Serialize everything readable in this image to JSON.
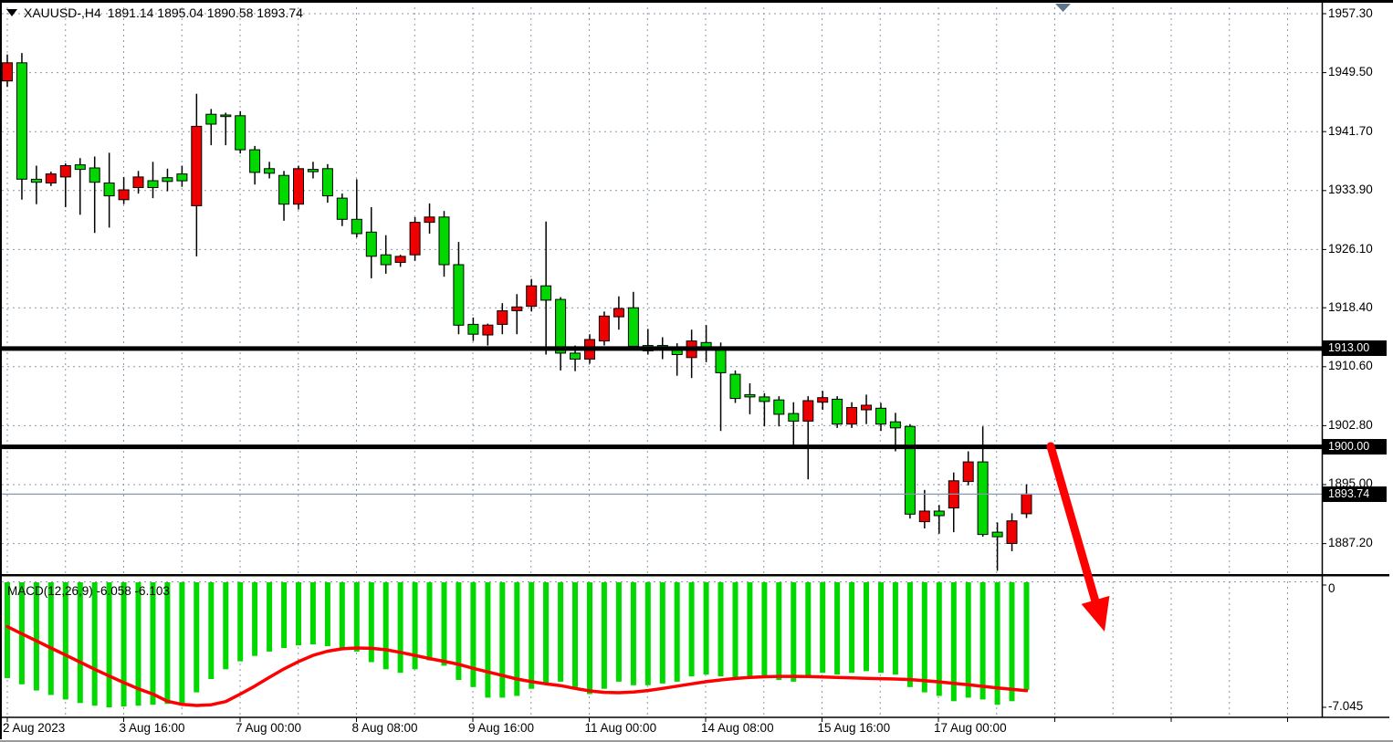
{
  "window": {
    "symbol_period": "XAUUSD-,H4",
    "ohlc_line": "1891.14 1895.04 1890.58 1893.74"
  },
  "chart_data": {
    "type": "candlestick",
    "symbol": "XAUUSD-",
    "timeframe": "H4",
    "current_bar": {
      "open": 1891.14,
      "high": 1895.04,
      "low": 1890.58,
      "close": 1893.74
    },
    "price_axis": {
      "ticks": [
        {
          "label": "1957.30",
          "value": 1957.3
        },
        {
          "label": "1949.50",
          "value": 1949.5
        },
        {
          "label": "1941.70",
          "value": 1941.7
        },
        {
          "label": "1933.90",
          "value": 1933.9
        },
        {
          "label": "1926.10",
          "value": 1926.1
        },
        {
          "label": "1918.40",
          "value": 1918.4
        },
        {
          "label": "1910.60",
          "value": 1910.6
        },
        {
          "label": "1902.80",
          "value": 1902.8
        },
        {
          "label": "1895.00",
          "value": 1895.0
        },
        {
          "label": "1887.20",
          "value": 1887.2
        }
      ]
    },
    "date_axis": {
      "labels": [
        "2 Aug 2023",
        "3 Aug 16:00",
        "7 Aug 00:00",
        "8 Aug 08:00",
        "9 Aug 16:00",
        "11 Aug 00:00",
        "14 Aug 08:00",
        "15 Aug 16:00",
        "17 Aug 00:00"
      ]
    },
    "hlines": [
      {
        "price": 1913.0,
        "label": "1913.00"
      },
      {
        "price": 1900.0,
        "label": "1900.00"
      }
    ],
    "current_price": {
      "value": 1893.74,
      "label": "1893.74"
    },
    "candles": [
      [
        1948.4,
        1951.9,
        1947.6,
        1950.8
      ],
      [
        1950.8,
        1952.1,
        1932.7,
        1935.4
      ],
      [
        1935.4,
        1937.2,
        1932.1,
        1935.0
      ],
      [
        1934.9,
        1936.4,
        1934.5,
        1936.1
      ],
      [
        1935.7,
        1937.5,
        1931.7,
        1937.2
      ],
      [
        1937.3,
        1938.2,
        1930.7,
        1936.7
      ],
      [
        1936.9,
        1938.4,
        1928.3,
        1935.0
      ],
      [
        1934.9,
        1938.9,
        1929.0,
        1933.2
      ],
      [
        1932.7,
        1935.7,
        1932.1,
        1934.0
      ],
      [
        1934.3,
        1936.5,
        1933.5,
        1935.7
      ],
      [
        1935.2,
        1937.7,
        1932.9,
        1934.3
      ],
      [
        1935.6,
        1936.8,
        1933.8,
        1935.1
      ],
      [
        1936.1,
        1937.2,
        1934.4,
        1935.2
      ],
      [
        1931.9,
        1946.7,
        1925.2,
        1942.4
      ],
      [
        1944.0,
        1944.7,
        1939.9,
        1942.7
      ],
      [
        1943.9,
        1944.2,
        1939.9,
        1943.7
      ],
      [
        1943.8,
        1944.4,
        1938.8,
        1939.3
      ],
      [
        1939.3,
        1939.8,
        1934.7,
        1936.3
      ],
      [
        1936.8,
        1937.7,
        1935.5,
        1936.2
      ],
      [
        1935.9,
        1936.5,
        1929.9,
        1932.1
      ],
      [
        1932.1,
        1937.2,
        1931.4,
        1936.8
      ],
      [
        1936.7,
        1937.7,
        1935.5,
        1936.4
      ],
      [
        1936.8,
        1937.4,
        1932.3,
        1933.2
      ],
      [
        1932.9,
        1933.5,
        1929.2,
        1930.1
      ],
      [
        1930.1,
        1935.4,
        1927.7,
        1928.2
      ],
      [
        1928.4,
        1931.7,
        1922.3,
        1925.2
      ],
      [
        1925.4,
        1928.0,
        1922.9,
        1924.1
      ],
      [
        1924.4,
        1925.4,
        1923.8,
        1925.2
      ],
      [
        1925.4,
        1930.4,
        1924.6,
        1929.7
      ],
      [
        1929.7,
        1932.2,
        1928.2,
        1930.4
      ],
      [
        1930.4,
        1931.2,
        1922.5,
        1924.1
      ],
      [
        1924.1,
        1927.1,
        1914.9,
        1916.1
      ],
      [
        1916.2,
        1917.1,
        1914.0,
        1914.9
      ],
      [
        1914.8,
        1916.3,
        1913.4,
        1916.1
      ],
      [
        1916.2,
        1919.0,
        1914.9,
        1918.0
      ],
      [
        1918.0,
        1920.2,
        1914.9,
        1918.5
      ],
      [
        1918.6,
        1922.2,
        1917.9,
        1921.3
      ],
      [
        1921.3,
        1929.8,
        1912.2,
        1919.4
      ],
      [
        1919.5,
        1919.8,
        1910.1,
        1912.4
      ],
      [
        1912.4,
        1913.4,
        1910.0,
        1911.6
      ],
      [
        1911.6,
        1914.9,
        1911.0,
        1914.2
      ],
      [
        1914.0,
        1917.9,
        1913.4,
        1917.3
      ],
      [
        1917.2,
        1919.9,
        1915.5,
        1918.3
      ],
      [
        1918.4,
        1920.5,
        1913.0,
        1913.3
      ],
      [
        1913.4,
        1915.6,
        1912.2,
        1912.7
      ],
      [
        1913.4,
        1914.5,
        1911.6,
        1913.2
      ],
      [
        1913.2,
        1913.7,
        1909.4,
        1912.2
      ],
      [
        1911.8,
        1915.5,
        1909.1,
        1914.0
      ],
      [
        1913.8,
        1916.1,
        1911.2,
        1913.2
      ],
      [
        1913.2,
        1913.8,
        1902.1,
        1909.8
      ],
      [
        1909.6,
        1910.1,
        1905.8,
        1906.4
      ],
      [
        1906.9,
        1908.4,
        1904.3,
        1906.6
      ],
      [
        1906.6,
        1907.1,
        1902.7,
        1906.0
      ],
      [
        1906.2,
        1906.7,
        1902.7,
        1904.3
      ],
      [
        1904.4,
        1905.9,
        1900.2,
        1903.4
      ],
      [
        1903.4,
        1906.7,
        1895.7,
        1906.1
      ],
      [
        1905.9,
        1907.4,
        1904.9,
        1906.5
      ],
      [
        1906.3,
        1906.7,
        1902.5,
        1903.0
      ],
      [
        1903.0,
        1905.9,
        1902.5,
        1905.2
      ],
      [
        1904.9,
        1906.9,
        1903.0,
        1905.5
      ],
      [
        1905.1,
        1905.8,
        1902.1,
        1903.0
      ],
      [
        1903.3,
        1904.5,
        1899.4,
        1902.5
      ],
      [
        1902.7,
        1903.0,
        1890.5,
        1891.1
      ],
      [
        1890.1,
        1894.3,
        1889.2,
        1891.5
      ],
      [
        1891.5,
        1892.3,
        1888.5,
        1890.9
      ],
      [
        1891.9,
        1896.6,
        1888.7,
        1895.5
      ],
      [
        1895.4,
        1899.4,
        1894.9,
        1898.0
      ],
      [
        1898.0,
        1902.7,
        1888.1,
        1888.4
      ],
      [
        1888.7,
        1890.0,
        1883.6,
        1888.1
      ],
      [
        1887.2,
        1891.2,
        1886.2,
        1890.2
      ],
      [
        1891.14,
        1895.04,
        1890.58,
        1893.74
      ]
    ],
    "macd": {
      "label": "MACD(12,26,9) -6.058 -6.103",
      "axis_max_label": "0",
      "axis_min_label": "-7.045",
      "axis_min": -7.045,
      "histogram": [
        -5.4,
        -5.75,
        -6.1,
        -6.35,
        -6.6,
        -6.8,
        -6.95,
        -7.045,
        -7.0,
        -6.95,
        -6.9,
        -6.85,
        -6.8,
        -6.2,
        -5.45,
        -4.9,
        -4.45,
        -4.15,
        -3.9,
        -3.7,
        -3.55,
        -3.5,
        -3.6,
        -3.7,
        -3.9,
        -4.5,
        -4.9,
        -5.1,
        -4.9,
        -4.4,
        -4.7,
        -5.5,
        -5.9,
        -6.5,
        -6.5,
        -6.4,
        -6.0,
        -5.7,
        -5.6,
        -6.0,
        -6.3,
        -6.0,
        -5.6,
        -5.8,
        -5.8,
        -5.7,
        -5.6,
        -5.3,
        -5.2,
        -5.3,
        -5.5,
        -5.4,
        -5.4,
        -5.5,
        -5.6,
        -5.3,
        -5.1,
        -5.2,
        -5.1,
        -5.0,
        -5.1,
        -5.2,
        -5.9,
        -6.2,
        -6.4,
        -6.7,
        -6.5,
        -6.6,
        -6.9,
        -6.7,
        -6.058
      ],
      "signal": [
        -2.5,
        -2.9,
        -3.3,
        -3.7,
        -4.1,
        -4.5,
        -4.9,
        -5.28,
        -5.65,
        -6.0,
        -6.3,
        -6.7,
        -6.88,
        -6.94,
        -6.9,
        -6.72,
        -6.3,
        -5.85,
        -5.35,
        -4.88,
        -4.47,
        -4.12,
        -3.88,
        -3.75,
        -3.7,
        -3.72,
        -3.8,
        -3.95,
        -4.12,
        -4.3,
        -4.45,
        -4.62,
        -4.85,
        -5.05,
        -5.25,
        -5.45,
        -5.6,
        -5.72,
        -5.82,
        -5.98,
        -6.12,
        -6.2,
        -6.22,
        -6.18,
        -6.1,
        -5.98,
        -5.85,
        -5.72,
        -5.6,
        -5.5,
        -5.42,
        -5.36,
        -5.32,
        -5.3,
        -5.3,
        -5.31,
        -5.33,
        -5.36,
        -5.39,
        -5.41,
        -5.43,
        -5.45,
        -5.48,
        -5.54,
        -5.61,
        -5.69,
        -5.77,
        -5.86,
        -5.95,
        -6.03,
        -6.103
      ]
    },
    "annotations": {
      "arrow": "red down arrow from 1900.00 level"
    },
    "colors": {
      "bull_candle": "#ee0000",
      "bear_candle": "#00d800",
      "macd_bar": "#00d800",
      "signal_line": "#ff0000",
      "arrow": "#ff0000",
      "grid": "#8799ac",
      "hline": "#000000",
      "current_price_line": "#8799ac",
      "marker": "#60748a",
      "box_bg": "#000000",
      "box_text": "#ffffff"
    }
  }
}
